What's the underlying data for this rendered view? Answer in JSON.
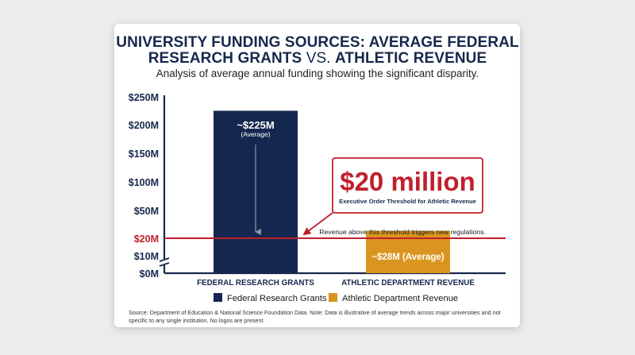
{
  "card": {
    "title_line1": "UNIVERSITY FUNDING SOURCES: AVERAGE FEDERAL",
    "title_line2_a": "RESEARCH GRANTS",
    "title_line2_vs": " VS. ",
    "title_line2_b": "ATHLETIC REVENUE",
    "subtitle": "Analysis of average annual funding showing the significant disparity.",
    "source": "Source: Department of Education & National Science Foundation Data. Note: Data is illustrative of average trends across major universities and not specific to any single institution. No logos are present."
  },
  "colors": {
    "federal": "#14274e",
    "athletic": "#d9951f",
    "threshold": "#c0202d",
    "axis": "#17284d"
  },
  "chart_data": {
    "type": "bar",
    "categories": [
      "FEDERAL RESEARCH GRANTS",
      "ATHLETIC DEPARTMENT REVENUE"
    ],
    "values": [
      225,
      28
    ],
    "unit": "$M",
    "y_ticks": [
      "$0M",
      "$10M",
      "$20M",
      "$50M",
      "$100M",
      "$150M",
      "$200M",
      "$250M"
    ],
    "y_tick_values": [
      0,
      10,
      20,
      50,
      100,
      150,
      200,
      250
    ],
    "y_axis_break": true,
    "grid": false,
    "bar_labels": [
      {
        "main": "~$225M",
        "sub": "(Average)"
      },
      {
        "main": "~$28M (Average)"
      }
    ],
    "legend": {
      "placement": "bottom-center",
      "entries": [
        "Federal Research Grants",
        "Athletic Department Revenue"
      ]
    },
    "threshold": {
      "value": 20,
      "big_label": "$20 million",
      "small_label": "Executive Order Threshold for Athletic Revenue",
      "line_label": "Revenue above this threshold triggers new regulations."
    }
  }
}
